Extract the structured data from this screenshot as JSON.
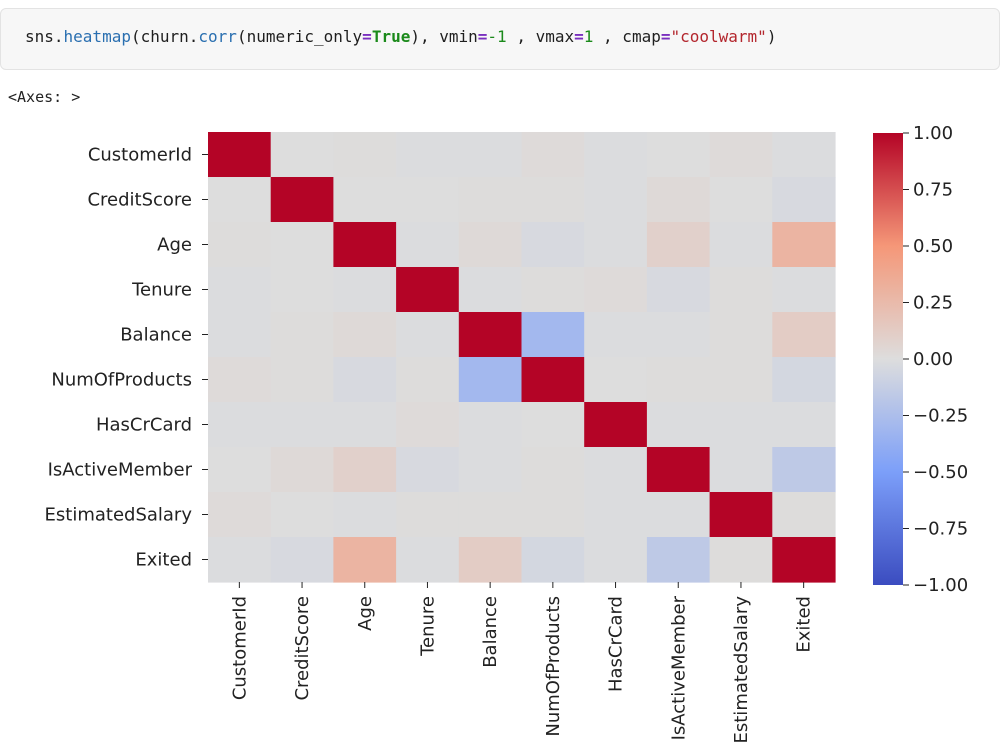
{
  "code_cell": {
    "prefix": "sns.",
    "func": "heatmap",
    "open_paren": "(churn.",
    "method": "corr",
    "args1": "(numeric_only",
    "eq1": "=",
    "kw_true": "True",
    "args2": "), vmin",
    "eq2": "=",
    "neg": "-1",
    "args3": " , vmax",
    "eq3": "=",
    "one": "1",
    "args4": " , cmap",
    "eq4": "=",
    "cmap_str": "\"coolwarm\"",
    "close": ")"
  },
  "output_text": "<Axes: >",
  "chart_data": {
    "type": "heatmap",
    "labels": [
      "CustomerId",
      "CreditScore",
      "Age",
      "Tenure",
      "Balance",
      "NumOfProducts",
      "HasCrCard",
      "IsActiveMember",
      "EstimatedSalary",
      "Exited"
    ],
    "matrix": [
      [
        1.0,
        0.0,
        0.01,
        -0.01,
        -0.01,
        0.02,
        -0.01,
        0.0,
        0.02,
        -0.01
      ],
      [
        0.0,
        1.0,
        0.0,
        0.0,
        0.01,
        0.01,
        -0.01,
        0.03,
        0.0,
        -0.03
      ],
      [
        0.01,
        0.0,
        1.0,
        -0.01,
        0.03,
        -0.03,
        -0.01,
        0.09,
        -0.01,
        0.29
      ],
      [
        -0.01,
        0.0,
        -0.01,
        1.0,
        -0.01,
        0.01,
        0.02,
        -0.03,
        0.01,
        -0.01
      ],
      [
        -0.01,
        0.01,
        0.03,
        -0.01,
        1.0,
        -0.3,
        -0.01,
        -0.01,
        0.01,
        0.12
      ],
      [
        0.02,
        0.01,
        -0.03,
        0.01,
        -0.3,
        1.0,
        0.0,
        0.01,
        0.01,
        -0.05
      ],
      [
        -0.01,
        -0.01,
        -0.01,
        0.02,
        -0.01,
        0.0,
        1.0,
        -0.01,
        -0.01,
        -0.01
      ],
      [
        0.0,
        0.03,
        0.09,
        -0.03,
        -0.01,
        0.01,
        -0.01,
        1.0,
        -0.01,
        -0.16
      ],
      [
        0.02,
        0.0,
        -0.01,
        0.01,
        0.01,
        0.01,
        -0.01,
        -0.01,
        1.0,
        0.01
      ],
      [
        -0.01,
        -0.03,
        0.29,
        -0.01,
        0.12,
        -0.05,
        -0.01,
        -0.16,
        0.01,
        1.0
      ]
    ],
    "vmin": -1,
    "vmax": 1,
    "cmap": "coolwarm",
    "colorbar_ticks": [
      "1.00",
      "0.75",
      "0.50",
      "0.25",
      "0.00",
      "−0.25",
      "−0.50",
      "−0.75",
      "−1.00"
    ],
    "colorbar_tick_values": [
      1.0,
      0.75,
      0.5,
      0.25,
      0.0,
      -0.25,
      -0.5,
      -0.75,
      -1.0
    ]
  }
}
